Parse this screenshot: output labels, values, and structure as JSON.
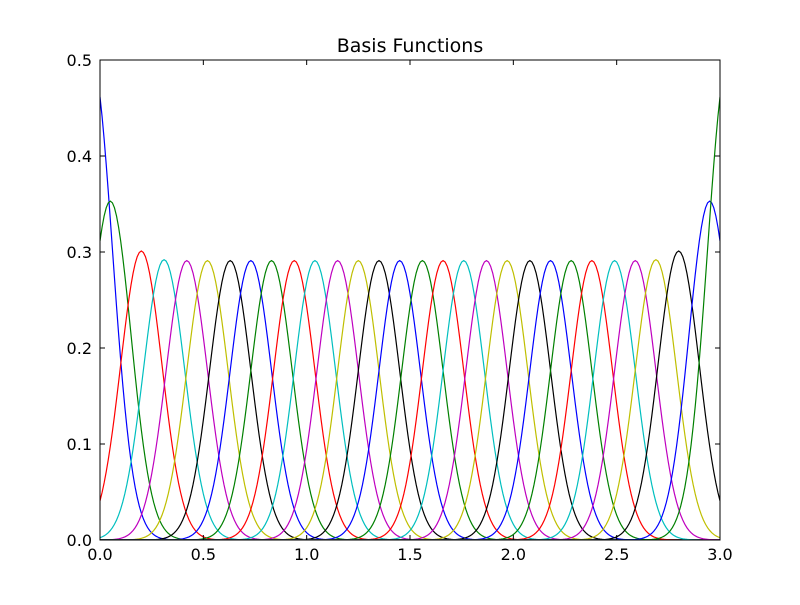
{
  "chart_data": {
    "type": "line",
    "title": "Basis Functions",
    "xlabel": "",
    "ylabel": "",
    "xlim": [
      0.0,
      3.0
    ],
    "ylim": [
      0.0,
      0.5
    ],
    "x_ticks": [
      {
        "value": 0.0,
        "label": "0.0"
      },
      {
        "value": 0.5,
        "label": "0.5"
      },
      {
        "value": 1.0,
        "label": "1.0"
      },
      {
        "value": 1.5,
        "label": "1.5"
      },
      {
        "value": 2.0,
        "label": "2.0"
      },
      {
        "value": 2.5,
        "label": "2.5"
      },
      {
        "value": 3.0,
        "label": "3.0"
      }
    ],
    "y_ticks": [
      {
        "value": 0.0,
        "label": "0.0"
      },
      {
        "value": 0.1,
        "label": "0.1"
      },
      {
        "value": 0.2,
        "label": "0.2"
      },
      {
        "value": 0.3,
        "label": "0.3"
      },
      {
        "value": 0.4,
        "label": "0.4"
      },
      {
        "value": 0.5,
        "label": "0.5"
      }
    ],
    "grid": false,
    "legend": "none",
    "series_shape": "gaussian",
    "series": [
      {
        "center": -0.04,
        "peak": 0.5,
        "width": 0.1,
        "color": "#0000ff"
      },
      {
        "center": 0.05,
        "peak": 0.353,
        "width": 0.1,
        "color": "#008000"
      },
      {
        "center": 0.2,
        "peak": 0.301,
        "width": 0.1,
        "color": "#ff0000"
      },
      {
        "center": 0.31,
        "peak": 0.292,
        "width": 0.1,
        "color": "#00bfbf"
      },
      {
        "center": 0.42,
        "peak": 0.291,
        "width": 0.1,
        "color": "#bf00bf"
      },
      {
        "center": 0.52,
        "peak": 0.291,
        "width": 0.1,
        "color": "#bfbf00"
      },
      {
        "center": 0.63,
        "peak": 0.291,
        "width": 0.1,
        "color": "#000000"
      },
      {
        "center": 0.73,
        "peak": 0.291,
        "width": 0.1,
        "color": "#0000ff"
      },
      {
        "center": 0.83,
        "peak": 0.291,
        "width": 0.1,
        "color": "#008000"
      },
      {
        "center": 0.94,
        "peak": 0.291,
        "width": 0.1,
        "color": "#ff0000"
      },
      {
        "center": 1.04,
        "peak": 0.291,
        "width": 0.1,
        "color": "#00bfbf"
      },
      {
        "center": 1.15,
        "peak": 0.291,
        "width": 0.1,
        "color": "#bf00bf"
      },
      {
        "center": 1.25,
        "peak": 0.291,
        "width": 0.1,
        "color": "#bfbf00"
      },
      {
        "center": 1.35,
        "peak": 0.291,
        "width": 0.1,
        "color": "#000000"
      },
      {
        "center": 1.45,
        "peak": 0.291,
        "width": 0.1,
        "color": "#0000ff"
      },
      {
        "center": 1.56,
        "peak": 0.291,
        "width": 0.1,
        "color": "#008000"
      },
      {
        "center": 1.66,
        "peak": 0.291,
        "width": 0.1,
        "color": "#ff0000"
      },
      {
        "center": 1.76,
        "peak": 0.291,
        "width": 0.1,
        "color": "#00bfbf"
      },
      {
        "center": 1.87,
        "peak": 0.291,
        "width": 0.1,
        "color": "#bf00bf"
      },
      {
        "center": 1.97,
        "peak": 0.291,
        "width": 0.1,
        "color": "#bfbf00"
      },
      {
        "center": 2.08,
        "peak": 0.291,
        "width": 0.1,
        "color": "#000000"
      },
      {
        "center": 2.18,
        "peak": 0.291,
        "width": 0.1,
        "color": "#0000ff"
      },
      {
        "center": 2.28,
        "peak": 0.291,
        "width": 0.1,
        "color": "#008000"
      },
      {
        "center": 2.38,
        "peak": 0.291,
        "width": 0.1,
        "color": "#ff0000"
      },
      {
        "center": 2.49,
        "peak": 0.291,
        "width": 0.1,
        "color": "#00bfbf"
      },
      {
        "center": 2.59,
        "peak": 0.291,
        "width": 0.1,
        "color": "#bf00bf"
      },
      {
        "center": 2.69,
        "peak": 0.292,
        "width": 0.1,
        "color": "#bfbf00"
      },
      {
        "center": 2.8,
        "peak": 0.301,
        "width": 0.1,
        "color": "#000000"
      },
      {
        "center": 2.95,
        "peak": 0.353,
        "width": 0.1,
        "color": "#0000ff"
      },
      {
        "center": 3.04,
        "peak": 0.5,
        "width": 0.1,
        "color": "#008000"
      }
    ]
  }
}
